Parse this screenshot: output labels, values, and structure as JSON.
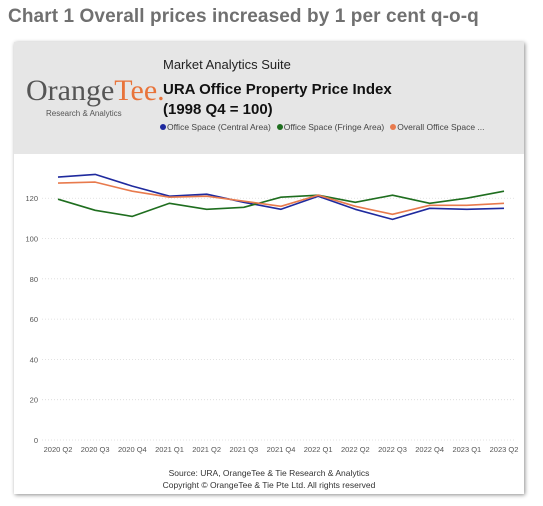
{
  "page_title": "Chart 1 Overall prices increased by 1 per cent q-o-q",
  "header": {
    "suite": "Market Analytics Suite",
    "title_line1": "URA Office Property Price Index",
    "title_line2": "(1998 Q4 = 100)"
  },
  "logo": {
    "word_part1": "Orange",
    "word_part2": "Tee.",
    "subtitle": "Research & Analytics"
  },
  "footer": {
    "source": "Source: URA, OrangeTee & Tie Research & Analytics",
    "copyright": "Copyright © OrangeTee & Tie Pte Ltd. All rights reserved"
  },
  "chart_data": {
    "type": "line",
    "x": [
      "2020 Q2",
      "2020 Q3",
      "2020 Q4",
      "2021 Q1",
      "2021 Q2",
      "2021 Q3",
      "2021 Q4",
      "2022 Q1",
      "2022 Q2",
      "2022 Q3",
      "2022 Q4",
      "2023 Q1",
      "2023 Q2"
    ],
    "ylim": [
      0,
      135
    ],
    "yticks": [
      0,
      20,
      40,
      60,
      80,
      100,
      120
    ],
    "grid": true,
    "legend_position": "top",
    "series": [
      {
        "name": "Office Space (Central Area)",
        "color": "#1f2a9e",
        "values": [
          130.5,
          131.8,
          126,
          121,
          122,
          118,
          114.5,
          121,
          114.5,
          109.5,
          115,
          114.5,
          115
        ]
      },
      {
        "name": "Office Space (Fringe Area)",
        "color": "#1f6e1f",
        "values": [
          119.5,
          114,
          111,
          117.5,
          114.5,
          115.5,
          120.5,
          121.5,
          118,
          121.5,
          117.5,
          120,
          123.5
        ]
      },
      {
        "name": "Overall Office Space ...",
        "color": "#e87a4d",
        "values": [
          127.5,
          128,
          123.5,
          120.5,
          121,
          118.5,
          116,
          121.5,
          116,
          112,
          116.5,
          116.5,
          117.5
        ]
      }
    ]
  }
}
